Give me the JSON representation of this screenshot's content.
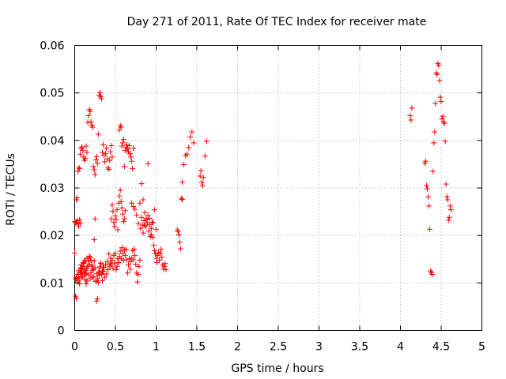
{
  "chart_data": {
    "type": "scatter",
    "title": "Day 271 of 2011, Rate Of TEC Index for receiver mate",
    "xlabel": "GPS time / hours",
    "ylabel": "ROTI / TECUs",
    "xlim": [
      0,
      5
    ],
    "ylim": [
      0,
      0.06
    ],
    "xticks": [
      0,
      0.5,
      1,
      1.5,
      2,
      2.5,
      3,
      3.5,
      4,
      4.5,
      5
    ],
    "xtick_labels": [
      "0",
      "0.5",
      "1",
      "1.5",
      "2",
      "2.5",
      "3",
      "3.5",
      "4",
      "4.5",
      "5"
    ],
    "yticks": [
      0,
      0.01,
      0.02,
      0.03,
      0.04,
      0.05,
      0.06
    ],
    "ytick_labels": [
      "0",
      "0.01",
      "0.02",
      "0.03",
      "0.04",
      "0.05",
      "0.06"
    ],
    "grid": true,
    "marker": "plus",
    "color": "#ff0000",
    "series": [
      {
        "name": "ROTI",
        "x": [
          0.0,
          0.01,
          0.02,
          0.03,
          0.04,
          0.05,
          0.06,
          0.07,
          0.08,
          0.09,
          0.1,
          0.11,
          0.12,
          0.13,
          0.14,
          0.15,
          0.01,
          0.02,
          0.03,
          0.04,
          0.05,
          0.06,
          0.07,
          0.08,
          0.09,
          0.1,
          0.11,
          0.12,
          0.13,
          0.14,
          0.15,
          0.16,
          0.17,
          0.18,
          0.19,
          0.2,
          0.21,
          0.22,
          0.23,
          0.24,
          0.25,
          0.26,
          0.27,
          0.28,
          0.29,
          0.3,
          0.31,
          0.32,
          0.33,
          0.34,
          0.35,
          0.36,
          0.37,
          0.38,
          0.39,
          0.4,
          0.41,
          0.42,
          0.43,
          0.44,
          0.45,
          0.46,
          0.47,
          0.48,
          0.49,
          0.5,
          0.51,
          0.52,
          0.53,
          0.54,
          0.55,
          0.56,
          0.57,
          0.58,
          0.59,
          0.6,
          0.61,
          0.62,
          0.63,
          0.64,
          0.65,
          0.66,
          0.67,
          0.68,
          0.69,
          0.7,
          0.71,
          0.72,
          0.73,
          0.74,
          0.75,
          0.76,
          0.77,
          0.78,
          0.79,
          0.8,
          0.81,
          0.82,
          0.83,
          0.84,
          0.85,
          0.86,
          0.87,
          0.88,
          0.89,
          0.9,
          0.91,
          0.92,
          0.93,
          0.94,
          0.95,
          0.96,
          0.97,
          0.98,
          0.99,
          1.0,
          1.01,
          1.02,
          1.03,
          1.04,
          1.05,
          1.06,
          1.07,
          1.08,
          1.09,
          1.1,
          1.11,
          1.12,
          0.0,
          0.01,
          0.02,
          0.03,
          0.04,
          0.05,
          0.06,
          0.07,
          0.08,
          0.09,
          0.1,
          0.11,
          0.12,
          0.13,
          0.14,
          0.15,
          0.16,
          0.17,
          0.18,
          0.19,
          0.2,
          0.21,
          0.22,
          0.23,
          0.24,
          0.25,
          0.26,
          0.27,
          0.28,
          0.29,
          0.3,
          0.31,
          0.32,
          0.33,
          0.34,
          0.35,
          0.36,
          0.37,
          0.38,
          0.39,
          0.4,
          0.41,
          0.42,
          0.43,
          0.44,
          0.45,
          0.46,
          0.07,
          0.08,
          0.09,
          0.1,
          0.11,
          0.12,
          0.13,
          0.14,
          0.15,
          0.17,
          0.18,
          0.19,
          0.2,
          0.21,
          0.22,
          0.23,
          0.24,
          0.25,
          0.26,
          0.27,
          0.28,
          0.29,
          0.3,
          0.31,
          0.32,
          0.33,
          0.34,
          0.35,
          0.55,
          0.56,
          0.57,
          0.58,
          0.59,
          0.6,
          0.61,
          0.62,
          0.63,
          0.64,
          0.65,
          0.66,
          0.67,
          0.68,
          0.69,
          0.7,
          0.71,
          0.72,
          0.02,
          0.03,
          0.04,
          0.05,
          0.06,
          0.07,
          0.44,
          0.45,
          0.46,
          0.47,
          0.48,
          0.49,
          0.5,
          0.51,
          0.52,
          0.53,
          0.54,
          0.55,
          0.56,
          0.57,
          0.58,
          0.59,
          0.6,
          0.61,
          0.62,
          0.7,
          0.72,
          0.74,
          0.76,
          0.78,
          0.8,
          0.82,
          0.84,
          0.86,
          0.88,
          0.9,
          0.92,
          0.94,
          0.96,
          0.98,
          1.0,
          1.26,
          1.27,
          1.28,
          1.29,
          1.3,
          1.31,
          1.32,
          1.32,
          1.34,
          1.36,
          1.38,
          1.4,
          1.42,
          1.44,
          1.46,
          1.54,
          1.55,
          1.56,
          1.57,
          1.58,
          1.6,
          1.62,
          4.12,
          4.13,
          4.14,
          4.3,
          4.31,
          4.32,
          4.33,
          4.34,
          4.35,
          4.36,
          4.37,
          4.38,
          4.39,
          4.4,
          4.41,
          4.42,
          4.43,
          4.44,
          4.45,
          4.46,
          4.47,
          4.48,
          4.49,
          4.5,
          4.51,
          4.52,
          4.53,
          4.54,
          4.55,
          4.56,
          4.57,
          4.58,
          4.59,
          4.6,
          4.61,
          4.62
        ],
        "y": [
          0.0163,
          0.0072,
          0.0068,
          0.0112,
          0.0105,
          0.0118,
          0.0098,
          0.0121,
          0.0132,
          0.0129,
          0.0135,
          0.0141,
          0.0128,
          0.0146,
          0.0119,
          0.0152,
          0.0108,
          0.0111,
          0.0118,
          0.0102,
          0.0126,
          0.0109,
          0.0131,
          0.0138,
          0.0124,
          0.0114,
          0.0143,
          0.0147,
          0.0121,
          0.0098,
          0.0104,
          0.0135,
          0.0117,
          0.0156,
          0.0109,
          0.0121,
          0.0138,
          0.0112,
          0.0129,
          0.0146,
          0.0132,
          0.0104,
          0.0119,
          0.0067,
          0.0101,
          0.0122,
          0.0134,
          0.0141,
          0.0118,
          0.0105,
          0.0125,
          0.0132,
          0.0112,
          0.0138,
          0.0119,
          0.0145,
          0.0128,
          0.0161,
          0.0135,
          0.0152,
          0.0139,
          0.0148,
          0.0131,
          0.0158,
          0.0142,
          0.0162,
          0.0128,
          0.0135,
          0.0151,
          0.0143,
          0.0156,
          0.0167,
          0.0151,
          0.0174,
          0.0162,
          0.0148,
          0.0169,
          0.0158,
          0.0171,
          0.0149,
          0.0121,
          0.0138,
          0.0151,
          0.0129,
          0.0145,
          0.0152,
          0.0168,
          0.0149,
          0.0171,
          0.0158,
          0.0139,
          0.0121,
          0.0102,
          0.0118,
          0.0135,
          0.0148,
          0.0215,
          0.0238,
          0.0222,
          0.0205,
          0.0231,
          0.0248,
          0.0219,
          0.0235,
          0.0227,
          0.0242,
          0.0209,
          0.0223,
          0.0198,
          0.0215,
          0.0228,
          0.0196,
          0.0179,
          0.0168,
          0.0161,
          0.0152,
          0.0143,
          0.0158,
          0.0164,
          0.0148,
          0.0162,
          0.0171,
          0.0154,
          0.0138,
          0.0129,
          0.0135,
          0.0141,
          0.0128,
          0.0229,
          0.0227,
          0.0275,
          0.0279,
          0.0335,
          0.0342,
          0.0341,
          0.0371,
          0.0383,
          0.0386,
          0.0379,
          0.0365,
          0.0358,
          0.0362,
          0.0388,
          0.0375,
          0.0438,
          0.0452,
          0.0465,
          0.0461,
          0.0439,
          0.0432,
          0.0428,
          0.0345,
          0.0338,
          0.0328,
          0.0359,
          0.0366,
          0.0352,
          0.0413,
          0.0495,
          0.0501,
          0.0492,
          0.0488,
          0.0375,
          0.0391,
          0.0368,
          0.0355,
          0.0372,
          0.0384,
          0.0361,
          0.0342,
          0.0339,
          0.0358,
          0.0376,
          0.0389,
          0.0365,
          0.0118,
          0.0123,
          0.0112,
          0.0135,
          0.0142,
          0.0119,
          0.0107,
          0.0126,
          0.0131,
          0.0146,
          0.0139,
          0.0154,
          0.0148,
          0.0135,
          0.0127,
          0.0113,
          0.0191,
          0.0235,
          0.0103,
          0.0062,
          0.0109,
          0.0122,
          0.0116,
          0.0131,
          0.0142,
          0.0119,
          0.0124,
          0.0138,
          0.0422,
          0.0431,
          0.0428,
          0.0388,
          0.0395,
          0.0402,
          0.0345,
          0.0379,
          0.0385,
          0.0391,
          0.0382,
          0.0376,
          0.0389,
          0.0372,
          0.0365,
          0.0356,
          0.0341,
          0.0384,
          0.0228,
          0.0231,
          0.0224,
          0.0219,
          0.0233,
          0.0226,
          0.0142,
          0.0235,
          0.0264,
          0.0251,
          0.0228,
          0.0219,
          0.0241,
          0.0233,
          0.0254,
          0.0212,
          0.0268,
          0.0283,
          0.0295,
          0.0271,
          0.0258,
          0.0245,
          0.0229,
          0.0235,
          0.0252,
          0.0268,
          0.0261,
          0.0255,
          0.0243,
          0.0225,
          0.0268,
          0.0309,
          0.0275,
          0.0221,
          0.0234,
          0.0351,
          0.0236,
          0.0201,
          0.0227,
          0.0254,
          0.0213,
          0.0212,
          0.0208,
          0.0201,
          0.0186,
          0.0172,
          0.0278,
          0.0276,
          0.0312,
          0.0349,
          0.0368,
          0.0371,
          0.0385,
          0.0407,
          0.0418,
          0.0395,
          0.0325,
          0.0336,
          0.0312,
          0.0305,
          0.0322,
          0.0367,
          0.0398,
          0.0452,
          0.0443,
          0.0468,
          0.0352,
          0.0356,
          0.0305,
          0.0298,
          0.0281,
          0.0262,
          0.0213,
          0.0125,
          0.0122,
          0.0118,
          0.0335,
          0.0395,
          0.0418,
          0.0478,
          0.0542,
          0.0539,
          0.0562,
          0.0558,
          0.0526,
          0.0491,
          0.0482,
          0.0445,
          0.0451,
          0.0439,
          0.0436,
          0.0398,
          0.0308,
          0.0282,
          0.0275,
          0.0232,
          0.0238,
          0.0262,
          0.0254
        ]
      }
    ]
  }
}
